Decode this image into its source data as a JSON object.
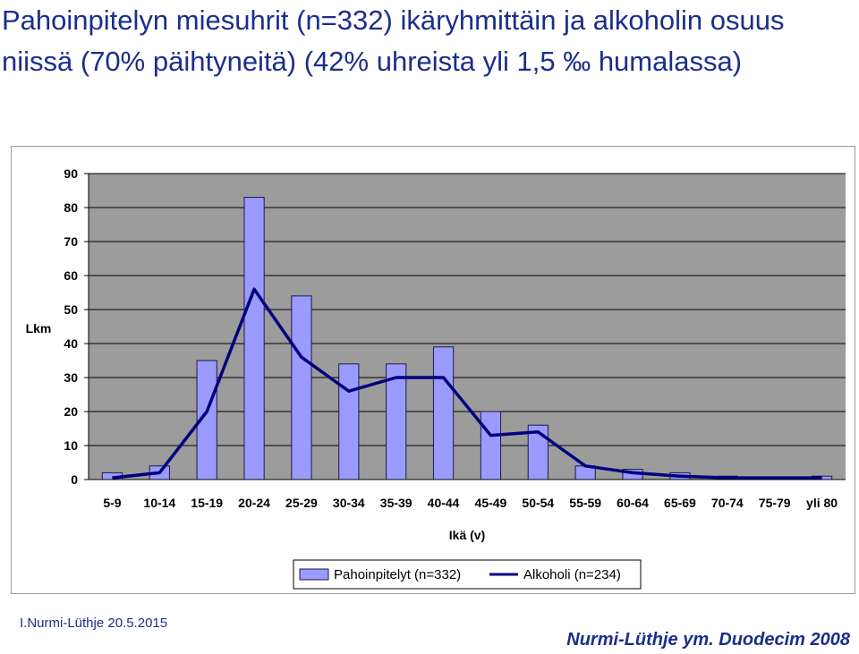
{
  "slide": {
    "title": "Pahoinpitelyn miesuhrit (n=332) ikäryhmittäin ja alkoholin osuus niissä  (70% päihtyneitä) (42% uhreista yli 1,5 ‰ humalassa)",
    "footer_left": "I.Nurmi-Lüthje 20.5.2015",
    "footer_right": "Nurmi-Lüthje ym. Duodecim 2008"
  },
  "colors": {
    "plot_background": "#9c9c9c",
    "bar_fill": "#9b9bff",
    "bar_stroke": "#1a1a4a",
    "line": "#000080",
    "title_text": "#1b2e8c"
  },
  "chart_data": {
    "type": "bar",
    "xlabel": "Ikä (v)",
    "ylabel": "Lkm",
    "ylim": [
      0,
      90
    ],
    "yticks": [
      0,
      10,
      20,
      30,
      40,
      50,
      60,
      70,
      80,
      90
    ],
    "grid": true,
    "legend_position": "bottom",
    "categories": [
      "5-9",
      "10-14",
      "15-19",
      "20-24",
      "25-29",
      "30-34",
      "35-39",
      "40-44",
      "45-49",
      "50-54",
      "55-59",
      "60-64",
      "65-69",
      "70-74",
      "75-79",
      "yli 80"
    ],
    "series": [
      {
        "name": "Pahoinpitelyt (n=332)",
        "type": "bar",
        "values": [
          2,
          4,
          35,
          83,
          54,
          34,
          34,
          39,
          20,
          16,
          4,
          3,
          2,
          1,
          0,
          1
        ]
      },
      {
        "name": "Alkoholi (n=234)",
        "type": "line",
        "values": [
          0.5,
          2,
          20,
          56,
          36,
          26,
          30,
          30,
          13,
          14,
          4,
          2,
          1,
          0.5,
          0.5,
          0.5
        ]
      }
    ]
  }
}
